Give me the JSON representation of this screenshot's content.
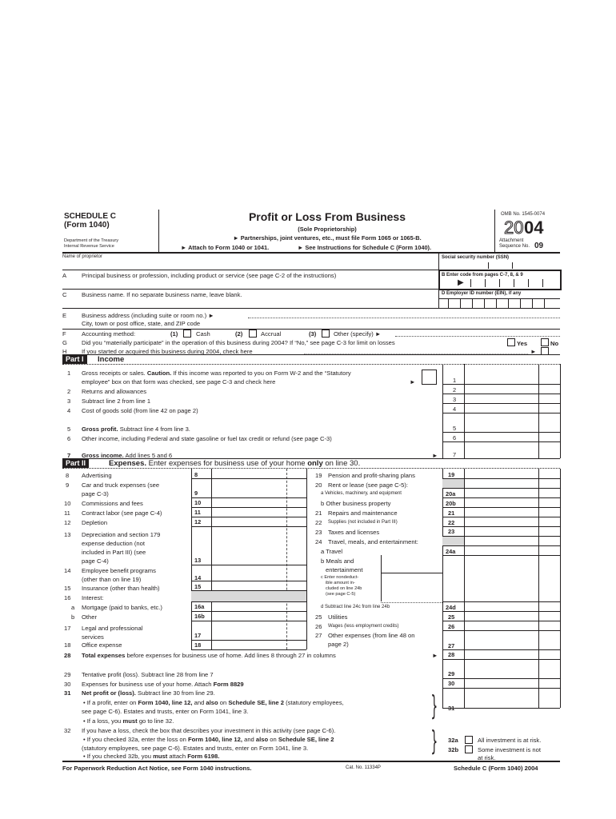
{
  "header": {
    "schedule": "SCHEDULE C",
    "form": "(Form 1040)",
    "dept": "Department of the Treasury",
    "irs": "Internal Revenue Service",
    "title": "Profit or Loss From Business",
    "subtitle": "(Sole Proprietorship)",
    "note": "► Partnerships, joint ventures, etc., must file Form 1065 or 1065-B.",
    "attach": "► Attach to Form 1040 or 1041.",
    "see": "► See Instructions for Schedule C (Form 1040).",
    "omb": "OMB No. 1545-0074",
    "year_a": "20",
    "year_b": "04",
    "attachment": "Attachment",
    "sequence": "Sequence No.",
    "seq_no": "09"
  },
  "ident": {
    "name": "Name of proprietor",
    "ssn": "Social security number (SSN)",
    "a_letter": "A",
    "a_text": "Principal business or profession, including product or service (see page C-2 of the instructions)",
    "b_text": "B  Enter code from pages C-7, 8, & 9",
    "c_letter": "C",
    "c_text": "Business name. If no separate business name, leave blank.",
    "d_text": "D  Employer ID number (EIN), if any",
    "e_letter": "E",
    "e_text": "Business address (including suite or room no.) ►",
    "e_city": "City, town or post office, state, and ZIP code",
    "f_letter": "F",
    "f_text": "Accounting method:",
    "f1": "(1)",
    "f1_label": "Cash",
    "f2": "(2)",
    "f2_label": "Accrual",
    "f3": "(3)",
    "f3_label": "Other (specify) ►",
    "g_letter": "G",
    "g_text": "Did you “materially participate” in the operation of this business during 2004? If “No,” see page C-3 for limit on losses",
    "yes": "Yes",
    "no": "No",
    "h_letter": "H",
    "h_text": "If you started or acquired this business during 2004, check here",
    "h_arrow": "►"
  },
  "part1": {
    "tag": "Part I",
    "title": "Income",
    "l1_num": "1",
    "l1_a_pre": "Gross receipts or sales.",
    "l1_a_bold": "Caution.",
    "l1_a_post": "If this income was reported to you on Form W-2 and the “Statutory",
    "l1_b": "employee” box on that form was checked, see page C-3 and check here",
    "l2_num": "2",
    "l2": "Returns and allowances",
    "l3_num": "3",
    "l3": "Subtract line 2 from line 1",
    "l4_num": "4",
    "l4": "Cost of goods sold (from line 42 on page 2)",
    "l5_num": "5",
    "l5_bold": "Gross profit.",
    "l5": "Subtract line 4 from line 3.",
    "l6_num": "6",
    "l6": "Other income, including Federal and state gasoline or fuel tax credit or refund (see page C-3)",
    "l7_num": "7",
    "l7_bold": "Gross income.",
    "l7": "Add lines 5 and 6",
    "arrow": "►"
  },
  "part2": {
    "tag": "Part II",
    "title_bold": "Expenses.",
    "title_pre": "Enter expenses for business use of your home",
    "title_only": "only",
    "title_post": "on line 30.",
    "left": {
      "n8": "8",
      "t8": "Advertising",
      "b8": "8",
      "n9": "9",
      "t9a": "Car and truck expenses (see",
      "t9b": "page C-3)",
      "b9": "9",
      "n10": "10",
      "t10": "Commissions and fees",
      "b10": "10",
      "n11": "11",
      "t11": "Contract labor (see page C-4)",
      "b11": "11",
      "n12": "12",
      "t12": "Depletion",
      "b12": "12",
      "n13": "13",
      "t13a": "Depreciation and section 179",
      "t13b": "expense      deduction      (not",
      "t13c": "included    in    Part    III)    (see",
      "t13d": "page  C-4)",
      "b13": "13",
      "n14": "14",
      "t14a": "Employee    benefit    programs",
      "t14b": "(other   than   on   line   19)",
      "b14": "14",
      "n15": "15",
      "t15": "Insurance (other than health)",
      "b15": "15",
      "n16": "16",
      "t16": "Interest:",
      "n16a": "a",
      "t16a": "Mortgage (paid to banks, etc.)",
      "b16a": "16a",
      "n16b": "b",
      "t16b": "Other",
      "b16b": "16b",
      "n17": "17",
      "t17a": "Legal and professional",
      "t17b": "services",
      "b17": "17",
      "n18": "18",
      "t18": "Office expense",
      "b18": "18"
    },
    "right": {
      "n19": "19",
      "t19": "Pension and profit-sharing plans",
      "b19": "19",
      "n20": "20",
      "t20": "Rent or lease (see page C-5):",
      "t20a": "a Vehicles, machinery, and equipment",
      "b20a": "20a",
      "t20b": "b Other business property",
      "b20b": "20b",
      "n21": "21",
      "t21": "Repairs and maintenance",
      "b21": "21",
      "n22": "22",
      "t22": "Supplies (not included in Part III)",
      "b22": "22",
      "n23": "23",
      "t23": "Taxes and licenses",
      "b23": "23",
      "n24": "24",
      "t24": "Travel, meals, and entertainment:",
      "t24a": "a Travel",
      "b24a": "24a",
      "t24b1": "b Meals  and",
      "t24b2": "entertainment",
      "t24c1": "c Enter  nondeduct-",
      "t24c2": "ible   amount   in-",
      "t24c3": "cluded on line 24b",
      "t24c4": "(see page C-5)",
      "t24d": "d Subtract line 24c from line 24b",
      "b24d": "24d",
      "n25": "25",
      "t25": "Utilities",
      "b25": "25",
      "n26": "26",
      "t26": "Wages (less employment credits)",
      "b26": "26",
      "n27": "27",
      "t27a": "Other expenses (from line 48 on",
      "t27b": "page 2)",
      "b27": "27"
    },
    "l28_num": "28",
    "l28_bold": "Total expenses",
    "l28": "before expenses for business use of home. Add lines 8 through 27 in columns",
    "b28": "28"
  },
  "bottom": {
    "l29_num": "29",
    "l29": "Tentative profit (loss). Subtract line 28 from line 7",
    "b29": "29",
    "l30_num": "30",
    "l30_pre": "Expenses for business use of your home. Attach",
    "l30_bold": "Form 8829",
    "b30": "30",
    "l31_num": "31",
    "l31_bold": "Net profit or (loss).",
    "l31": "Subtract line 30 from line 29.",
    "l31_b1_pre": "• If a profit, enter on",
    "l31_b1_f": "Form 1040, line 12,",
    "l31_b1_and": "and",
    "l31_b1_also": "also",
    "l31_b1_on": "on",
    "l31_b1_se": "Schedule SE, line 2",
    "l31_b1_post": "(statutory employees,",
    "l31_b1_2": "see page C-6). Estates and trusts, enter on Form 1041, line 3.",
    "l31_b2_pre": "• If a loss, you",
    "l31_b2_must": "must",
    "l31_b2_post": "go to line 32.",
    "b31": "31",
    "l32_num": "32",
    "l32": "If you have a loss, check the box that describes your investment in this activity (see page C-6).",
    "l32_b1_pre": "• If you checked 32a, enter the loss on",
    "l32_b1_f": "Form 1040, line 12,",
    "l32_b1_and": "and",
    "l32_b1_also": "also",
    "l32_b1_on": "on",
    "l32_b1_se": "Schedule SE, line 2",
    "l32_b1_2": "(statutory employees, see page C-6). Estates and trusts, enter on Form 1041, line 3.",
    "l32_b2_pre": "• If you checked 32b, you",
    "l32_b2_must": "must",
    "l32_b2_mid": "attach",
    "l32_b2_form": "Form 6198.",
    "b32a": "32a",
    "t32a": "All investment is at risk.",
    "b32b": "32b",
    "t32b1": "Some investment is not",
    "t32b2": "at risk."
  },
  "footer": {
    "paperwork": "For Paperwork Reduction Act Notice, see Form 1040 instructions.",
    "cat": "Cat. No. 11334P",
    "form_id": "Schedule C (Form 1040) 2004"
  }
}
